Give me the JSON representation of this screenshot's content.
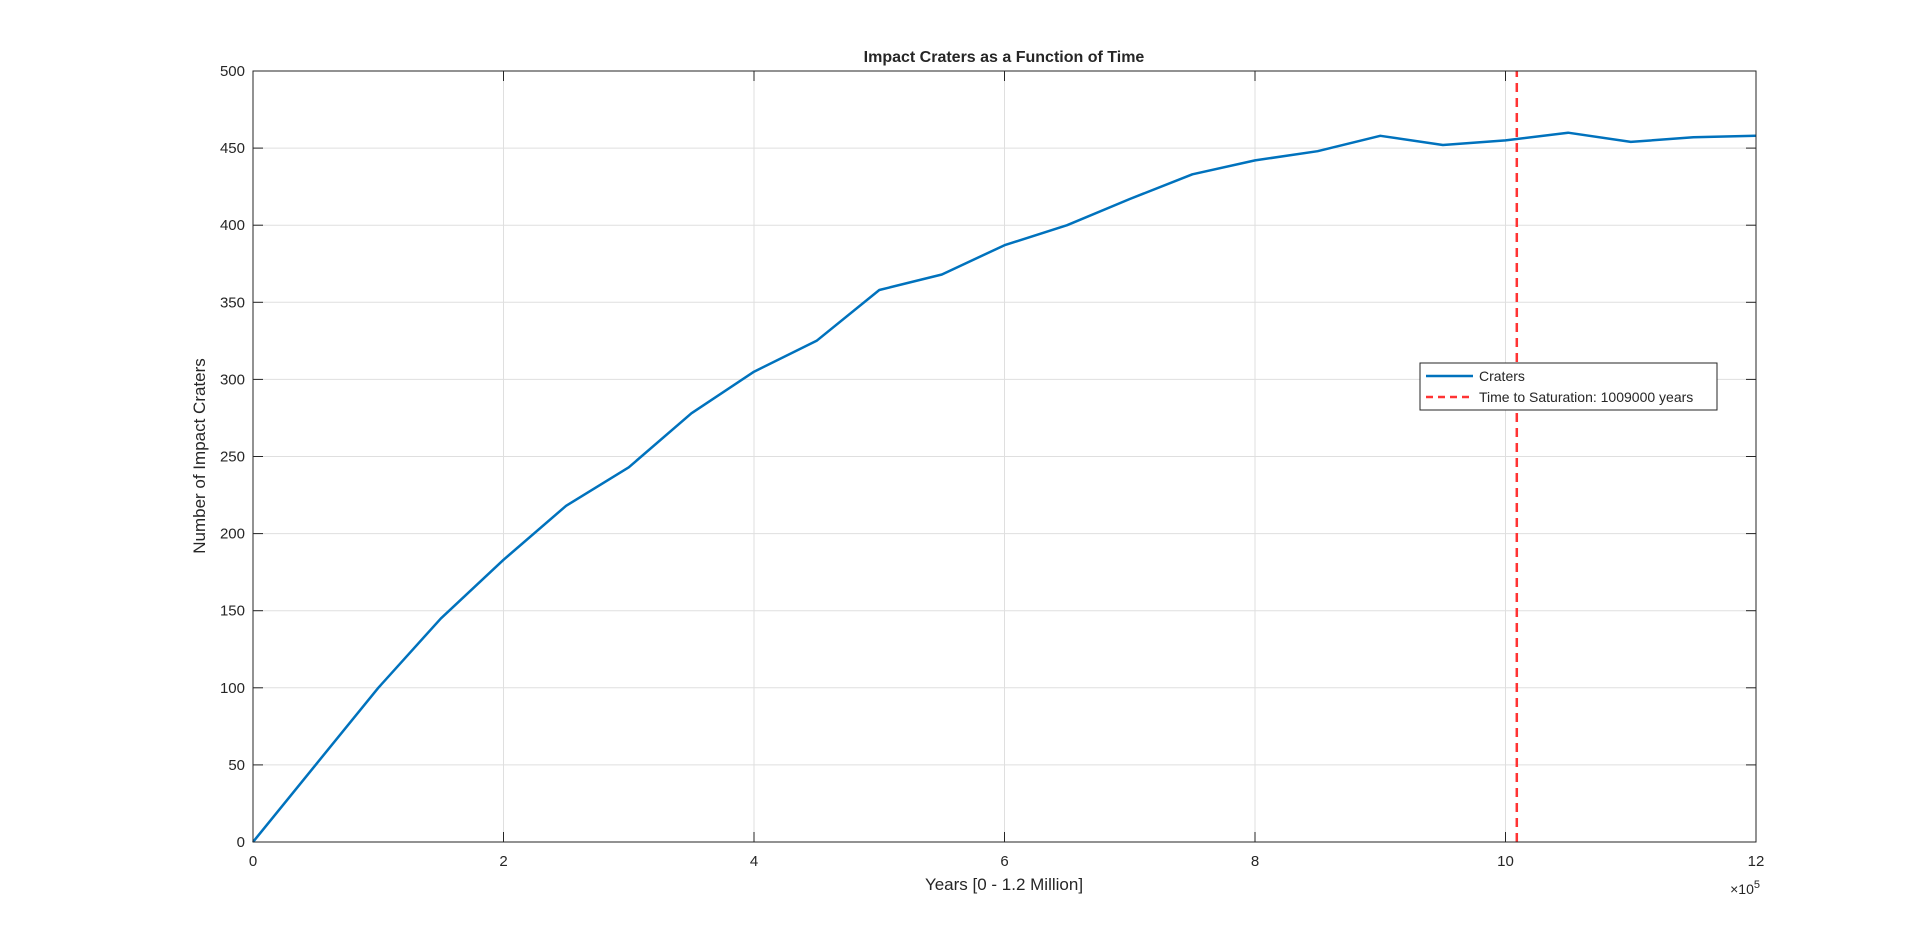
{
  "chart_data": {
    "type": "line",
    "title": "Impact Craters as a Function of Time",
    "xlabel": "Years [0 - 1.2 Million]",
    "ylabel": "Number of Impact Craters",
    "x_exponent_base": "×10",
    "x_exponent_power": "5",
    "xlim": [
      0,
      1200000
    ],
    "ylim": [
      0,
      500
    ],
    "x_tick_values": [
      0,
      200000,
      400000,
      600000,
      800000,
      1000000,
      1200000
    ],
    "x_tick_labels": [
      "0",
      "2",
      "4",
      "6",
      "8",
      "10",
      "12"
    ],
    "y_tick_values": [
      0,
      50,
      100,
      150,
      200,
      250,
      300,
      350,
      400,
      450,
      500
    ],
    "y_tick_labels": [
      "0",
      "50",
      "100",
      "150",
      "200",
      "250",
      "300",
      "350",
      "400",
      "450",
      "500"
    ],
    "grid": true,
    "legend_position": "right",
    "series": [
      {
        "name": "Craters",
        "color": "#0072BD",
        "style": "solid",
        "x": [
          0,
          50000,
          100000,
          150000,
          200000,
          250000,
          300000,
          350000,
          400000,
          450000,
          500000,
          550000,
          600000,
          650000,
          700000,
          750000,
          800000,
          850000,
          900000,
          950000,
          1000000,
          1050000,
          1100000,
          1150000,
          1200000
        ],
        "y": [
          0,
          50,
          100,
          145,
          183,
          218,
          243,
          278,
          305,
          325,
          358,
          368,
          387,
          400,
          417,
          433,
          442,
          448,
          458,
          452,
          455,
          460,
          454,
          457,
          458
        ]
      },
      {
        "name": "Time to Saturation: 1009000 years",
        "color": "#FF3333",
        "style": "dashed",
        "x": [
          1009000,
          1009000
        ],
        "y": [
          0,
          500
        ]
      }
    ]
  }
}
